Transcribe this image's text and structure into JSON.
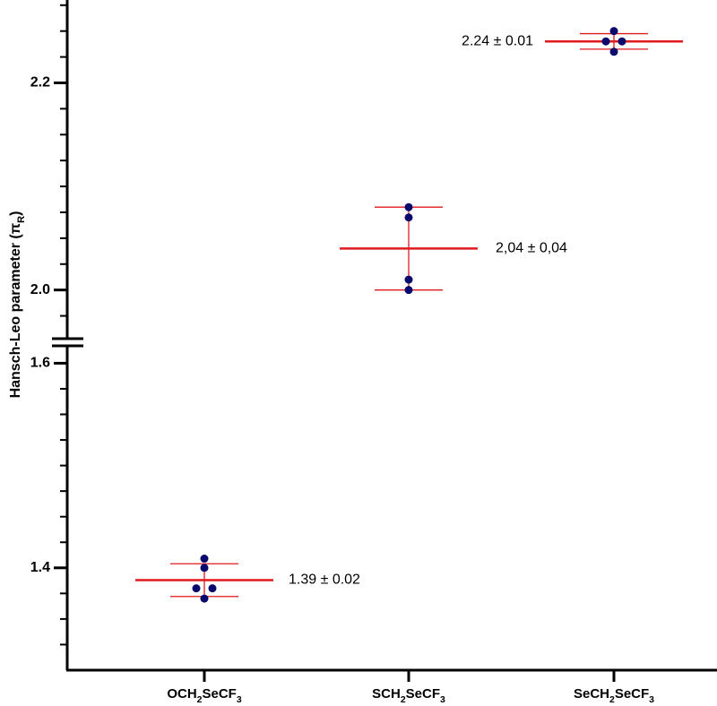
{
  "chart_data": {
    "type": "dot-mean-sd",
    "y_label": [
      "Hansch-Leo parameter (π",
      "R",
      ")"
    ],
    "categories": [
      [
        "OCH",
        "2",
        "SeCF",
        "3"
      ],
      [
        "SCH",
        "2",
        "SeCF",
        "3"
      ],
      [
        "SeCH",
        "2",
        "SeCF",
        "3"
      ]
    ],
    "ylim": [
      1.3,
      2.28
    ],
    "y_break": [
      1.617,
      1.953
    ],
    "yticks": [
      1.4,
      1.6,
      {
        "value": 2.0,
        "label": "2.0"
      },
      2.2
    ],
    "minor_yticks": [
      1.325,
      1.35,
      1.375,
      1.425,
      1.45,
      1.475,
      1.5,
      1.525,
      1.55,
      1.575,
      1.975,
      2.025,
      2.05,
      2.075,
      2.1,
      2.125,
      2.15,
      2.175,
      2.225,
      2.25,
      2.275
    ],
    "point_color": "#0a0a6e",
    "summary_color": "#e0191c",
    "series": [
      {
        "points": [
          1.409,
          1.4,
          1.38,
          1.38,
          1.37
        ],
        "mean": 1.388,
        "sd": 0.016,
        "label": "1.39 ± 0.02"
      },
      {
        "points": [
          2.08,
          2.07,
          2.01,
          2.0
        ],
        "mean": 2.04,
        "sd": 0.04,
        "label": "2,04 ± 0,04"
      },
      {
        "points": [
          2.25,
          2.24,
          2.24,
          2.23
        ],
        "mean": 2.24,
        "sd": 0.0075,
        "label": "2.24 ± 0.01"
      }
    ]
  }
}
